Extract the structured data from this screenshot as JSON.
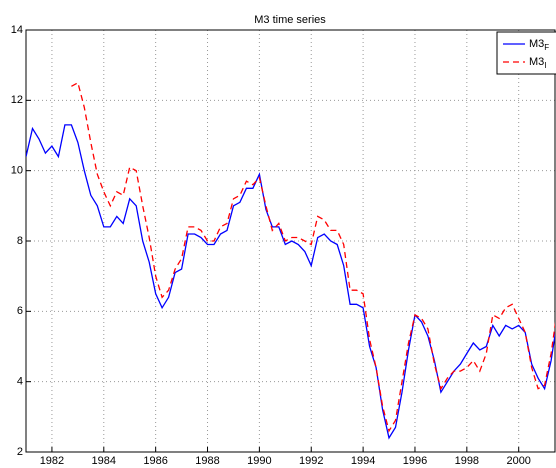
{
  "chart_data": {
    "type": "line",
    "title": "M3 time series",
    "x": [
      1981.0,
      1981.25,
      1981.5,
      1981.75,
      1982.0,
      1982.25,
      1982.5,
      1982.75,
      1983.0,
      1983.25,
      1983.5,
      1983.75,
      1984.0,
      1984.25,
      1984.5,
      1984.75,
      1985.0,
      1985.25,
      1985.5,
      1985.75,
      1986.0,
      1986.25,
      1986.5,
      1986.75,
      1987.0,
      1987.25,
      1987.5,
      1987.75,
      1988.0,
      1988.25,
      1988.5,
      1988.75,
      1989.0,
      1989.25,
      1989.5,
      1989.75,
      1990.0,
      1990.25,
      1990.5,
      1990.75,
      1991.0,
      1991.25,
      1991.5,
      1991.75,
      1992.0,
      1992.25,
      1992.5,
      1992.75,
      1993.0,
      1993.25,
      1993.5,
      1993.75,
      1994.0,
      1994.25,
      1994.5,
      1994.75,
      1995.0,
      1995.25,
      1995.5,
      1995.75,
      1996.0,
      1996.25,
      1996.5,
      1996.75,
      1997.0,
      1997.25,
      1997.5,
      1997.75,
      1998.0,
      1998.25,
      1998.5,
      1998.75,
      1999.0,
      1999.25,
      1999.5,
      1999.75,
      2000.0,
      2000.25,
      2000.5,
      2000.75,
      2001.0,
      2001.25,
      2001.5
    ],
    "series": [
      {
        "name": "M3F",
        "color": "#0000ff",
        "dash": false,
        "values": [
          10.4,
          11.2,
          10.9,
          10.5,
          10.7,
          10.4,
          11.3,
          11.3,
          10.8,
          10.0,
          9.3,
          9.0,
          8.4,
          8.4,
          8.7,
          8.5,
          9.2,
          9.0,
          8.0,
          7.4,
          6.5,
          6.1,
          6.4,
          7.1,
          7.2,
          8.2,
          8.2,
          8.1,
          7.9,
          7.9,
          8.2,
          8.3,
          9.0,
          9.1,
          9.5,
          9.5,
          9.9,
          8.9,
          8.4,
          8.4,
          7.9,
          8.0,
          7.9,
          7.7,
          7.3,
          8.1,
          8.2,
          8.0,
          7.9,
          7.3,
          6.2,
          6.2,
          6.1,
          5.0,
          4.4,
          3.2,
          2.4,
          2.7,
          3.7,
          4.9,
          5.9,
          5.7,
          5.3,
          4.6,
          3.7,
          4.0,
          4.3,
          4.5,
          4.8,
          5.1,
          4.9,
          5.0,
          5.6,
          5.3,
          5.6,
          5.5,
          5.6,
          5.4,
          4.5,
          4.1,
          3.8,
          4.6,
          5.8
        ]
      },
      {
        "name": "M3I",
        "color": "#ff0000",
        "dash": true,
        "values": [
          null,
          null,
          null,
          null,
          null,
          null,
          null,
          12.4,
          12.5,
          11.8,
          10.8,
          9.9,
          9.4,
          9.0,
          9.4,
          9.3,
          10.1,
          10.0,
          9.0,
          8.1,
          7.0,
          6.4,
          6.6,
          7.2,
          7.5,
          8.4,
          8.4,
          8.3,
          8.0,
          8.0,
          8.4,
          8.5,
          9.2,
          9.3,
          9.7,
          9.6,
          9.8,
          9.0,
          8.3,
          8.5,
          8.0,
          8.1,
          8.1,
          8.0,
          7.9,
          8.7,
          8.6,
          8.3,
          8.3,
          7.9,
          6.6,
          6.6,
          6.5,
          5.2,
          4.4,
          3.3,
          2.6,
          2.9,
          4.0,
          5.1,
          5.9,
          5.8,
          5.5,
          4.5,
          3.8,
          4.1,
          4.3,
          4.3,
          4.4,
          4.6,
          4.3,
          4.8,
          5.9,
          5.8,
          6.1,
          6.2,
          5.8,
          5.4,
          4.4,
          3.8,
          3.9,
          4.8,
          6.1
        ]
      }
    ],
    "xlim": [
      1981,
      2001.4
    ],
    "xticks": [
      1982,
      1984,
      1986,
      1988,
      1990,
      1992,
      1994,
      1996,
      1998,
      2000
    ],
    "ylim": [
      2,
      14
    ],
    "yticks": [
      2,
      4,
      6,
      8,
      10,
      12,
      14
    ],
    "grid": true,
    "legend": "upper right"
  }
}
